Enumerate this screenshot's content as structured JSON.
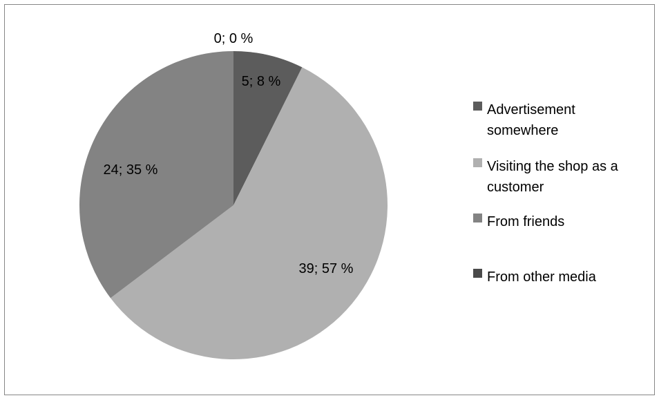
{
  "chart_data": {
    "type": "pie",
    "title": "",
    "slices": [
      {
        "name_lines": [
          "Advertisement",
          "somewhere"
        ],
        "value": 5,
        "data_label": "5; 8 %",
        "color": "#5c5c5c"
      },
      {
        "name_lines": [
          "Visiting the shop as a",
          "customer"
        ],
        "value": 39,
        "data_label": "39; 57 %",
        "color": "#b0b0b0"
      },
      {
        "name_lines": [
          "From friends"
        ],
        "value": 24,
        "data_label": "24; 35 %",
        "color": "#838383"
      },
      {
        "name_lines": [
          "From other media"
        ],
        "value": 0,
        "data_label": "0; 0 %",
        "color": "#4a4a4a"
      }
    ],
    "legend_position": "right",
    "start_angle": "12 o'clock",
    "direction": "clockwise"
  }
}
